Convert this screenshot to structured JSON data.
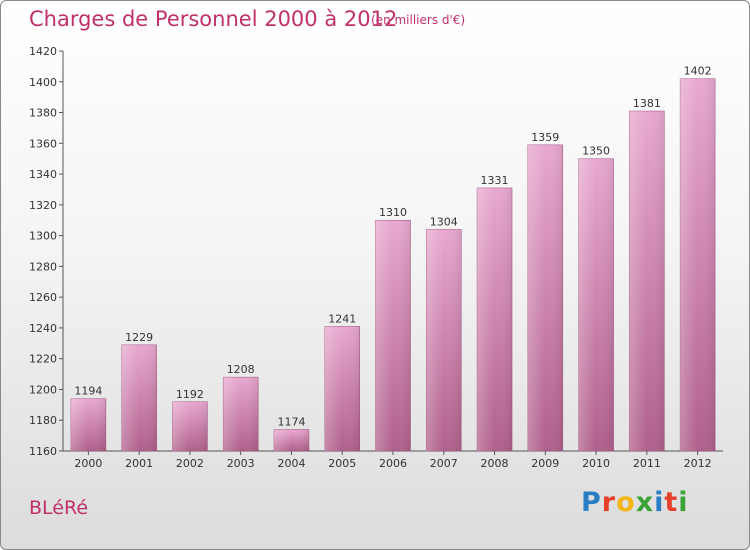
{
  "header": {
    "title": "Charges de Personnel 2000 à 2012",
    "subtitle": "(en milliers d'€)"
  },
  "footer": {
    "place": "BLéRé",
    "logo_letters": [
      "P",
      "r",
      "o",
      "x",
      "i",
      "t",
      "i"
    ]
  },
  "colors": {
    "accent": "#c0306a",
    "bar_top": "#e8a8d0",
    "bar_bottom": "#b0608c",
    "logo": [
      "#2a7fc4",
      "#e5402a",
      "#f2b617",
      "#3aa336",
      "#2a7fc4",
      "#e5402a",
      "#3aa336"
    ]
  },
  "chart_data": {
    "type": "bar",
    "categories": [
      "2000",
      "2001",
      "2002",
      "2003",
      "2004",
      "2005",
      "2006",
      "2007",
      "2008",
      "2009",
      "2010",
      "2011",
      "2012"
    ],
    "values": [
      1194,
      1229,
      1192,
      1208,
      1174,
      1241,
      1310,
      1304,
      1331,
      1359,
      1350,
      1381,
      1402
    ],
    "ylim": [
      1160,
      1420
    ],
    "yticks": [
      1160,
      1180,
      1200,
      1220,
      1240,
      1260,
      1280,
      1300,
      1320,
      1340,
      1360,
      1380,
      1400,
      1420
    ],
    "grid": false,
    "legend": "none"
  }
}
